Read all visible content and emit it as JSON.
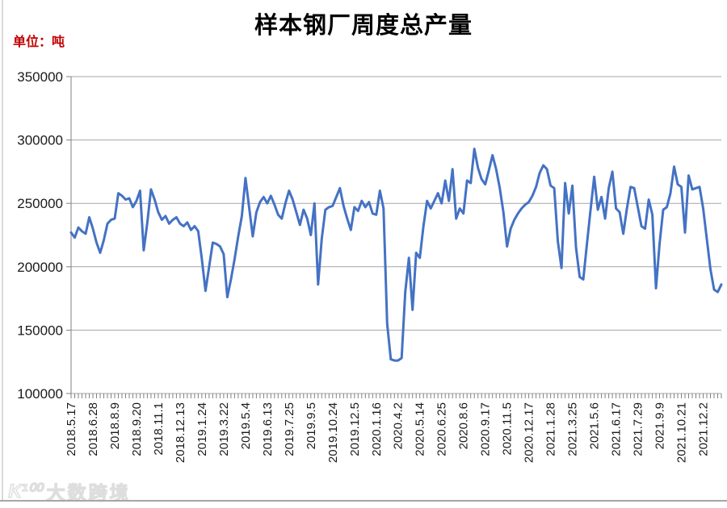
{
  "header": {
    "title": "样本钢厂周度总产量",
    "unit_label": "单位：吨"
  },
  "watermark": {
    "logo": "K¹⁰⁰",
    "text": "大数跨境"
  },
  "colors": {
    "line": "#4472C4",
    "grid": "#a6a6a6",
    "axis": "#808080",
    "tick_text": "#1a1a1a",
    "unit_text": "#c00000"
  },
  "chart_data": {
    "type": "line",
    "title": "样本钢厂周度总产量",
    "unit": "吨",
    "xlabel": "",
    "ylabel": "",
    "ylim": [
      100000,
      350000
    ],
    "y_ticks": [
      350000,
      300000,
      250000,
      200000,
      150000,
      100000
    ],
    "grid": "horizontal",
    "legend": "none",
    "x_label_every": 6,
    "x_tick_labels": [
      "2018.5.17",
      "2018.6.28",
      "2018.8.9",
      "2018.9.20",
      "2018.11.1",
      "2018.12.13",
      "2019.1.24",
      "2019.3.22",
      "2019.5.4",
      "2019.6.13",
      "2019.7.25",
      "2019.9.5",
      "2019.10.24",
      "2019.12.5",
      "2020.1.16",
      "2020.4.2",
      "2020.5.14",
      "2020.6.25",
      "2020.8.6",
      "2020.9.17",
      "2020.11.5",
      "2020.12.17",
      "2021.1.28",
      "2021.3.25",
      "2021.5.6",
      "2021.6.17",
      "2021.7.29",
      "2021.9.9",
      "2021.10.21",
      "2021.12.2"
    ],
    "values": [
      227000,
      223000,
      231000,
      228000,
      226000,
      239000,
      230000,
      219000,
      211000,
      221000,
      234000,
      237000,
      238000,
      258000,
      256000,
      253000,
      254000,
      247000,
      252000,
      260000,
      213000,
      235000,
      261000,
      253000,
      243000,
      237000,
      240000,
      234000,
      237000,
      239000,
      234000,
      232000,
      235000,
      229000,
      232000,
      228000,
      206000,
      181000,
      200000,
      219000,
      218000,
      216000,
      210000,
      176000,
      190000,
      206000,
      224000,
      240000,
      270000,
      247000,
      224000,
      243000,
      251000,
      255000,
      250000,
      256000,
      249000,
      241000,
      238000,
      250000,
      260000,
      253000,
      243000,
      233000,
      245000,
      238000,
      225000,
      250000,
      186000,
      222000,
      245000,
      247000,
      248000,
      255000,
      262000,
      248000,
      238000,
      229000,
      247000,
      244000,
      252000,
      247000,
      251000,
      242000,
      241000,
      260000,
      246000,
      155000,
      127000,
      126000,
      126000,
      128000,
      180000,
      207000,
      166000,
      211000,
      207000,
      232000,
      252000,
      246000,
      252000,
      258000,
      250000,
      268000,
      252000,
      277000,
      238000,
      246000,
      242000,
      268000,
      266000,
      293000,
      278000,
      269000,
      265000,
      276000,
      288000,
      277000,
      262000,
      243000,
      216000,
      230000,
      237000,
      242000,
      246000,
      249000,
      251000,
      256000,
      263000,
      274000,
      280000,
      277000,
      264000,
      262000,
      220000,
      199000,
      266000,
      242000,
      264000,
      215000,
      192000,
      190000,
      218000,
      245000,
      271000,
      245000,
      255000,
      238000,
      262000,
      275000,
      246000,
      243000,
      226000,
      246000,
      263000,
      262000,
      247000,
      232000,
      230000,
      253000,
      241000,
      183000,
      218000,
      245000,
      247000,
      258000,
      279000,
      265000,
      263000,
      227000,
      272000,
      261000,
      262000,
      263000,
      246000,
      222000,
      198000,
      182000,
      180000,
      186000
    ]
  }
}
